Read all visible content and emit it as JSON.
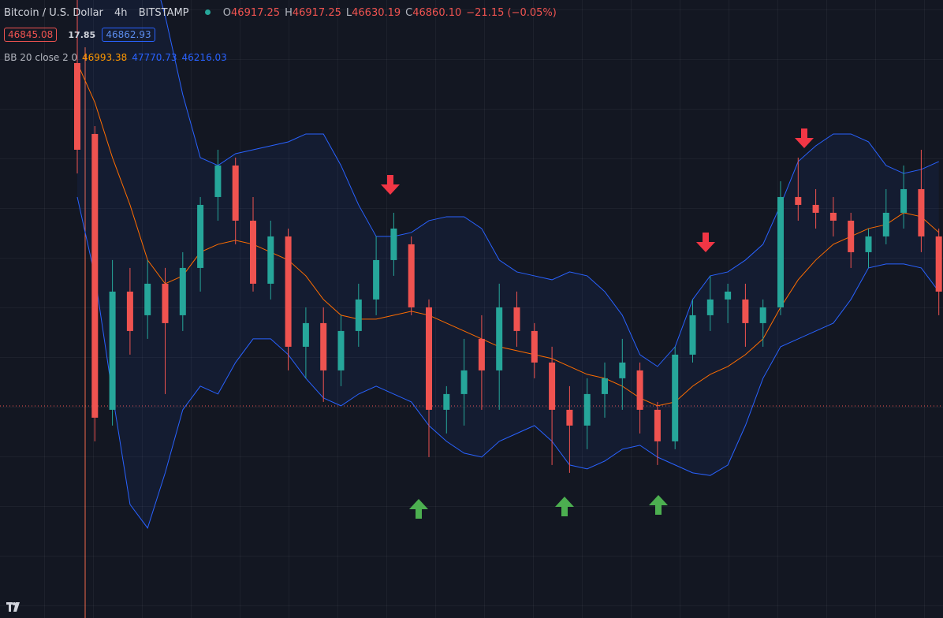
{
  "header": {
    "symbol": "Bitcoin / U.S. Dollar",
    "interval": "4h",
    "exchange": "BITSTAMP",
    "ohlc": [
      {
        "label": "O",
        "value": "46917.25"
      },
      {
        "label": "H",
        "value": "46917.25"
      },
      {
        "label": "L",
        "value": "46630.19"
      },
      {
        "label": "C",
        "value": "46860.10"
      }
    ],
    "change": "−21.15 (−0.05%)",
    "bid": "46845.08",
    "spread": "17.85",
    "ask": "46862.93"
  },
  "indicator": {
    "name": "BB 20 close 2 0",
    "values": [
      {
        "value": "46993.38",
        "color": "#ff9800"
      },
      {
        "value": "47770.73",
        "color": "#2962ff"
      },
      {
        "value": "46216.03",
        "color": "#2962ff"
      }
    ]
  },
  "chart_data": {
    "type": "candlestick",
    "up_color": "#26a69a",
    "down_color": "#ef5350",
    "ylim": [
      40820,
      50230
    ],
    "ohlc": [
      [
        49270,
        50230,
        47590,
        47950
      ],
      [
        48190,
        48310,
        43510,
        43870
      ],
      [
        43990,
        46270,
        43750,
        45790
      ],
      [
        45790,
        46150,
        44830,
        45190
      ],
      [
        45430,
        46270,
        45070,
        45910
      ],
      [
        45910,
        46150,
        44230,
        45310
      ],
      [
        45430,
        46390,
        45190,
        46150
      ],
      [
        46150,
        47230,
        45790,
        47110
      ],
      [
        47230,
        47950,
        46870,
        47710
      ],
      [
        47710,
        47830,
        46510,
        46870
      ],
      [
        46870,
        47230,
        45790,
        45910
      ],
      [
        45910,
        46870,
        45670,
        46630
      ],
      [
        46630,
        46750,
        44590,
        44950
      ],
      [
        44950,
        45550,
        44470,
        45310
      ],
      [
        45310,
        45550,
        44110,
        44590
      ],
      [
        44590,
        45430,
        44350,
        45190
      ],
      [
        45190,
        45910,
        44950,
        45670
      ],
      [
        45670,
        46630,
        45430,
        46270
      ],
      [
        46270,
        46990,
        46030,
        46750
      ],
      [
        46510,
        46630,
        45430,
        45550
      ],
      [
        45550,
        45670,
        43270,
        43990
      ],
      [
        43990,
        44350,
        43630,
        44230
      ],
      [
        44230,
        45070,
        43750,
        44590
      ],
      [
        45070,
        45430,
        43990,
        44590
      ],
      [
        44590,
        45910,
        43990,
        45550
      ],
      [
        45550,
        45790,
        44950,
        45190
      ],
      [
        45190,
        45310,
        44470,
        44710
      ],
      [
        44710,
        44950,
        43150,
        43990
      ],
      [
        43990,
        44350,
        43030,
        43750
      ],
      [
        43750,
        44470,
        43390,
        44230
      ],
      [
        44230,
        44710,
        43870,
        44470
      ],
      [
        44470,
        45070,
        43990,
        44710
      ],
      [
        44590,
        44710,
        43630,
        43990
      ],
      [
        43990,
        44110,
        43150,
        43510
      ],
      [
        43510,
        44950,
        43390,
        44830
      ],
      [
        44830,
        45670,
        44710,
        45430
      ],
      [
        45430,
        46030,
        45190,
        45670
      ],
      [
        45670,
        45910,
        45310,
        45790
      ],
      [
        45670,
        45910,
        44950,
        45310
      ],
      [
        45310,
        45670,
        44950,
        45550
      ],
      [
        45550,
        47470,
        45430,
        47230
      ],
      [
        47230,
        47830,
        46870,
        47110
      ],
      [
        47110,
        47350,
        46750,
        46990
      ],
      [
        46990,
        47230,
        46630,
        46870
      ],
      [
        46870,
        46990,
        46150,
        46390
      ],
      [
        46390,
        46750,
        46150,
        46630
      ],
      [
        46630,
        47350,
        46510,
        46990
      ],
      [
        46990,
        47710,
        46750,
        47350
      ],
      [
        47350,
        47950,
        46390,
        46630
      ],
      [
        46630,
        46750,
        45430,
        45790
      ]
    ],
    "band_fill": "rgba(41,98,255,0.07)",
    "bands": [
      {
        "color": "#2962ff",
        "values": [
          51430,
          51430,
          51430,
          51190,
          50950,
          49990,
          48790,
          47830,
          47710,
          47890,
          47950,
          48010,
          48070,
          48190,
          48190,
          47710,
          47110,
          46630,
          46630,
          46690,
          46870,
          46930,
          46930,
          46750,
          46270,
          46090,
          46030,
          45970,
          46090,
          46030,
          45790,
          45430,
          44830,
          44650,
          44950,
          45670,
          46030,
          46090,
          46270,
          46510,
          47110,
          47770,
          48010,
          48190,
          48190,
          48070,
          47710,
          47590,
          47650,
          47770
        ]
      },
      {
        "color": "#ff6d00",
        "values": [
          49270,
          48670,
          47830,
          47110,
          46270,
          45910,
          46030,
          46390,
          46510,
          46570,
          46510,
          46390,
          46270,
          46030,
          45670,
          45430,
          45370,
          45370,
          45430,
          45490,
          45430,
          45310,
          45190,
          45070,
          44950,
          44890,
          44830,
          44770,
          44650,
          44530,
          44470,
          44350,
          44170,
          44050,
          44110,
          44350,
          44530,
          44650,
          44830,
          45070,
          45550,
          45970,
          46270,
          46510,
          46630,
          46750,
          46810,
          46990,
          46930,
          46690
        ]
      },
      {
        "color": "#2962ff",
        "values": [
          47230,
          46030,
          44230,
          42550,
          42190,
          43030,
          43990,
          44350,
          44230,
          44710,
          45070,
          45070,
          44830,
          44470,
          44170,
          44050,
          44230,
          44350,
          44230,
          44110,
          43750,
          43510,
          43330,
          43270,
          43510,
          43630,
          43750,
          43510,
          43150,
          43090,
          43210,
          43390,
          43450,
          43270,
          43150,
          43030,
          42990,
          43150,
          43750,
          44470,
          44950,
          45070,
          45190,
          45310,
          45670,
          46150,
          46210,
          46210,
          46150,
          45790
        ]
      }
    ]
  }
}
